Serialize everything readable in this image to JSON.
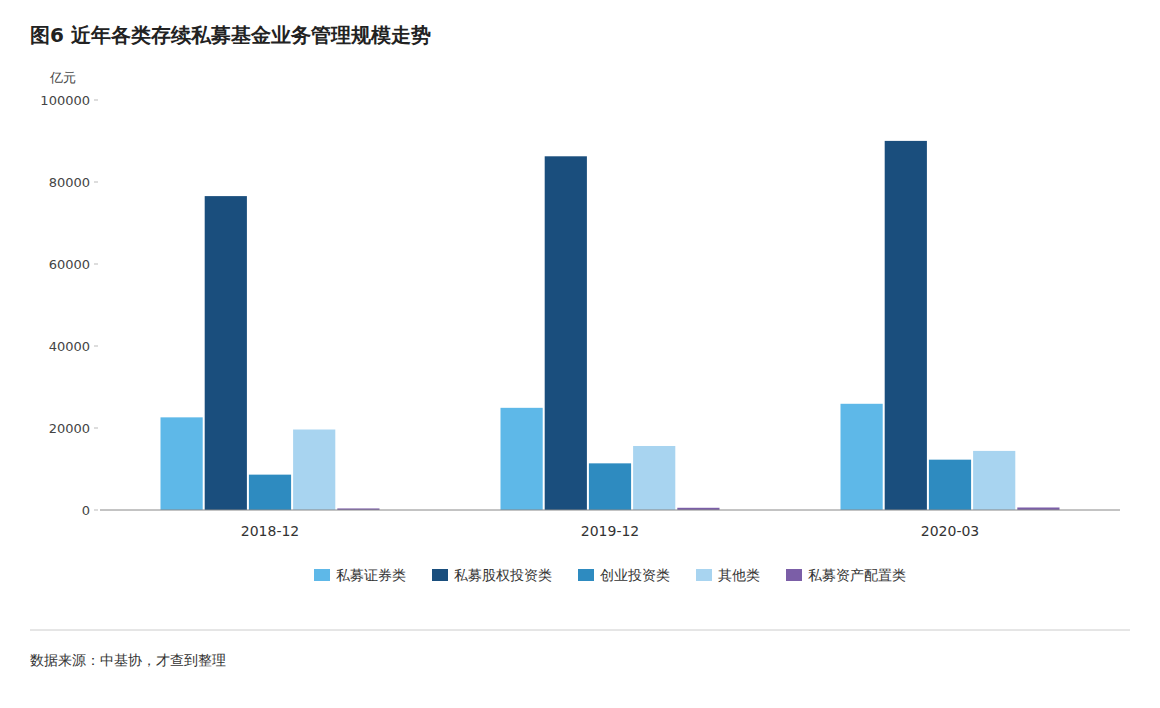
{
  "chart_data": {
    "type": "bar",
    "title": "图6 近年各类存续私募基金业务管理规模走势",
    "ylabel": "亿元",
    "source": "数据来源：中基协，才查到整理",
    "categories": [
      "2018-12",
      "2019-12",
      "2020-03"
    ],
    "series": [
      {
        "name": "私募证券类",
        "color": "#5eb8e8",
        "values": [
          22597,
          24921,
          25905
        ]
      },
      {
        "name": "私募股权投资类",
        "color": "#1a4e7d",
        "values": [
          76560,
          86270,
          90026
        ]
      },
      {
        "name": "创业投资类",
        "color": "#2e8bc0",
        "values": [
          8624,
          11379,
          12277
        ]
      },
      {
        "name": "其他类",
        "color": "#a8d4f0",
        "values": [
          19632,
          15613,
          14413
        ]
      },
      {
        "name": "私募资产配置类",
        "color": "#7b5ea7",
        "values": [
          380,
          541,
          613
        ]
      }
    ],
    "ylim": [
      0,
      100000
    ],
    "yticks": [
      0,
      20000,
      40000,
      60000,
      80000,
      100000
    ],
    "grid": false,
    "legend": "bottom"
  }
}
